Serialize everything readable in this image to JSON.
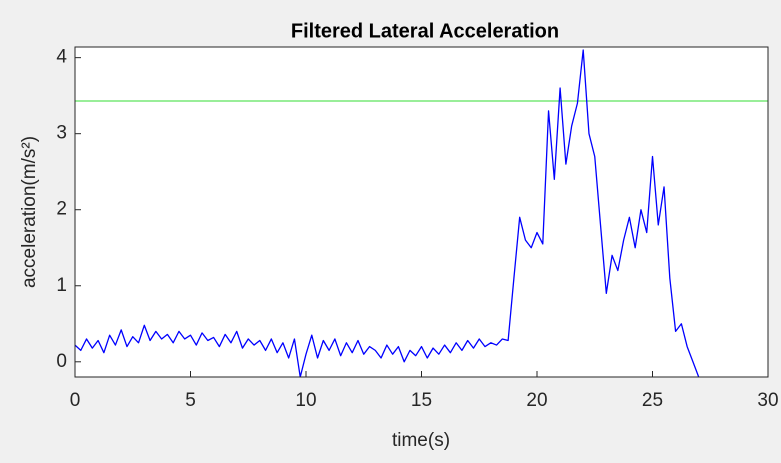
{
  "chart_data": {
    "type": "line",
    "title": "Filtered Lateral Acceleration",
    "x_label": "time(s)",
    "y_label": "acceleration(m/s²)",
    "x": [
      0,
      0.25,
      0.5,
      0.75,
      1,
      1.25,
      1.5,
      1.75,
      2,
      2.25,
      2.5,
      2.75,
      3,
      3.25,
      3.5,
      3.75,
      4,
      4.25,
      4.5,
      4.75,
      5,
      5.25,
      5.5,
      5.75,
      6,
      6.25,
      6.5,
      6.75,
      7,
      7.25,
      7.5,
      7.75,
      8,
      8.25,
      8.5,
      8.75,
      9,
      9.25,
      9.5,
      9.75,
      10,
      10.25,
      10.5,
      10.75,
      11,
      11.25,
      11.5,
      11.75,
      12,
      12.25,
      12.5,
      12.75,
      13,
      13.25,
      13.5,
      13.75,
      14,
      14.25,
      14.5,
      14.75,
      15,
      15.25,
      15.5,
      15.75,
      16,
      16.25,
      16.5,
      16.75,
      17,
      17.25,
      17.5,
      17.75,
      18,
      18.25,
      18.5,
      18.75,
      19,
      19.25,
      19.5,
      19.75,
      20,
      20.25,
      20.5,
      20.75,
      21,
      21.25,
      21.5,
      21.75,
      22,
      22.25,
      22.5,
      22.75,
      23,
      23.25,
      23.5,
      23.75,
      24,
      24.25,
      24.5,
      24.75,
      25,
      25.25,
      25.5,
      25.75,
      26,
      26.25,
      26.5,
      26.75,
      27
    ],
    "values": [
      0.22,
      0.15,
      0.3,
      0.18,
      0.28,
      0.12,
      0.35,
      0.22,
      0.42,
      0.2,
      0.33,
      0.25,
      0.48,
      0.28,
      0.4,
      0.3,
      0.36,
      0.25,
      0.4,
      0.3,
      0.35,
      0.22,
      0.38,
      0.28,
      0.32,
      0.2,
      0.36,
      0.25,
      0.4,
      0.18,
      0.3,
      0.22,
      0.28,
      0.15,
      0.3,
      0.12,
      0.25,
      0.05,
      0.3,
      -0.2,
      0.1,
      0.35,
      0.05,
      0.28,
      0.15,
      0.3,
      0.08,
      0.25,
      0.12,
      0.28,
      0.1,
      0.2,
      0.15,
      0.05,
      0.22,
      0.1,
      0.2,
      0.0,
      0.15,
      0.08,
      0.2,
      0.05,
      0.18,
      0.1,
      0.22,
      0.12,
      0.25,
      0.15,
      0.28,
      0.18,
      0.3,
      0.2,
      0.25,
      0.22,
      0.3,
      0.28,
      1.1,
      1.9,
      1.6,
      1.5,
      1.7,
      1.55,
      3.3,
      2.4,
      3.6,
      2.6,
      3.1,
      3.4,
      4.1,
      3.0,
      2.7,
      1.8,
      0.9,
      1.4,
      1.2,
      1.6,
      1.9,
      1.5,
      2.0,
      1.7,
      2.7,
      1.8,
      2.3,
      1.1,
      0.4,
      0.5,
      0.2,
      0.0,
      -0.2
    ],
    "color": "#0000ff",
    "hline": {
      "value": 3.43,
      "color": "#33dd33"
    },
    "xlim": [
      0,
      30
    ],
    "ylim": [
      -0.2,
      4.14
    ],
    "xticks": [
      0,
      5,
      10,
      15,
      20,
      25,
      30
    ],
    "yticks": [
      0,
      1,
      2,
      3,
      4
    ]
  }
}
